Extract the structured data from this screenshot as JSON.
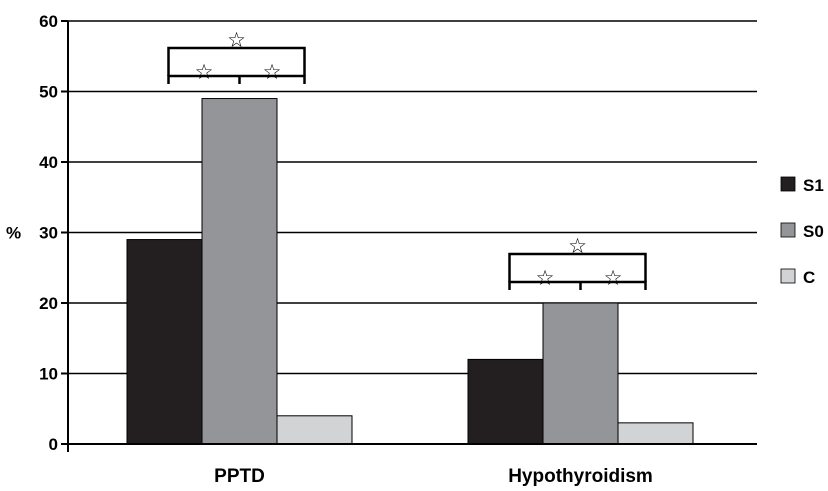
{
  "chart_data": {
    "type": "bar",
    "categories": [
      "PPTD",
      "Hypothyroidism"
    ],
    "series": [
      {
        "name": "S1",
        "values": [
          29,
          12
        ],
        "color": "#231f20"
      },
      {
        "name": "S0",
        "values": [
          49,
          20
        ],
        "color": "#939598"
      },
      {
        "name": "C",
        "values": [
          4,
          3
        ],
        "color": "#d1d3d4"
      }
    ],
    "ylabel": "%",
    "ylim": [
      0,
      60
    ],
    "yticks": [
      0,
      10,
      20,
      30,
      40,
      50,
      60
    ],
    "grid": true,
    "legend_position": "right",
    "significance": [
      {
        "category": "PPTD",
        "marks": [
          "☆",
          "☆",
          "☆"
        ]
      },
      {
        "category": "Hypothyroidism",
        "marks": [
          "☆",
          "☆",
          "☆"
        ]
      }
    ]
  }
}
